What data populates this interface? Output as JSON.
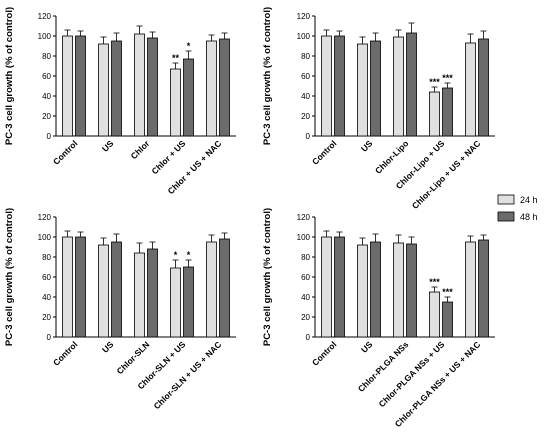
{
  "legend": {
    "position": "right",
    "entries": [
      {
        "label": "24 h",
        "color": "#e0e0e0"
      },
      {
        "label": "48 h",
        "color": "#6b6b6b"
      }
    ]
  },
  "chart_data": [
    {
      "type": "bar",
      "ylabel": "PC-3 cell growth (% of control)",
      "ylim": [
        0,
        120
      ],
      "yticks": [
        0,
        20,
        40,
        60,
        80,
        100,
        120
      ],
      "categories": [
        "Control",
        "US",
        "Chlor",
        "Chlor + US",
        "Chlor + US + NAC"
      ],
      "series": [
        {
          "name": "24 h",
          "values": [
            100,
            92,
            102,
            67,
            95
          ],
          "errors": [
            6,
            7,
            8,
            6,
            6
          ],
          "sig": [
            "",
            "",
            "",
            "**",
            ""
          ]
        },
        {
          "name": "48 h",
          "values": [
            100,
            95,
            98,
            77,
            97
          ],
          "errors": [
            5,
            8,
            6,
            8,
            6
          ],
          "sig": [
            "",
            "",
            "",
            "*",
            ""
          ]
        }
      ]
    },
    {
      "type": "bar",
      "ylabel": "PC-3 cell growth (% of control)",
      "ylim": [
        0,
        120
      ],
      "yticks": [
        0,
        20,
        40,
        60,
        80,
        100,
        120
      ],
      "categories": [
        "Control",
        "US",
        "Chlor-Lipo",
        "Chlor-Lipo + US",
        "Chlor-Lipo + US + NAC"
      ],
      "series": [
        {
          "name": "24 h",
          "values": [
            100,
            92,
            99,
            44,
            93
          ],
          "errors": [
            6,
            7,
            7,
            5,
            9
          ],
          "sig": [
            "",
            "",
            "",
            "***",
            ""
          ]
        },
        {
          "name": "48 h",
          "values": [
            100,
            95,
            103,
            48,
            97
          ],
          "errors": [
            5,
            8,
            10,
            5,
            8
          ],
          "sig": [
            "",
            "",
            "",
            "***",
            ""
          ]
        }
      ]
    },
    {
      "type": "bar",
      "ylabel": "PC-3 cell growth (% of control)",
      "ylim": [
        0,
        120
      ],
      "yticks": [
        0,
        20,
        40,
        60,
        80,
        100,
        120
      ],
      "categories": [
        "Control",
        "US",
        "Chlor-SLN",
        "Chlor-SLN + US",
        "Chlor-SLN + US + NAC"
      ],
      "series": [
        {
          "name": "24 h",
          "values": [
            100,
            92,
            84,
            69,
            95
          ],
          "errors": [
            6,
            7,
            10,
            8,
            7
          ],
          "sig": [
            "",
            "",
            "",
            "*",
            ""
          ]
        },
        {
          "name": "48 h",
          "values": [
            100,
            95,
            88,
            70,
            98
          ],
          "errors": [
            5,
            8,
            7,
            7,
            6
          ],
          "sig": [
            "",
            "",
            "",
            "*",
            ""
          ]
        }
      ]
    },
    {
      "type": "bar",
      "ylabel": "PC-3 cell growth  (% of control)",
      "ylim": [
        0,
        120
      ],
      "yticks": [
        0,
        20,
        40,
        60,
        80,
        100,
        120
      ],
      "categories": [
        "Control",
        "US",
        "Chlor-PLGA NSs",
        "Chlor-PLGA NSs + US",
        "Chlor-PLGA NSs + US + NAC"
      ],
      "series": [
        {
          "name": "24 h",
          "values": [
            100,
            92,
            94,
            45,
            95
          ],
          "errors": [
            6,
            7,
            8,
            5,
            6
          ],
          "sig": [
            "",
            "",
            "",
            "***",
            ""
          ]
        },
        {
          "name": "48 h",
          "values": [
            100,
            95,
            93,
            35,
            97
          ],
          "errors": [
            5,
            8,
            7,
            5,
            5
          ],
          "sig": [
            "",
            "",
            "",
            "***",
            ""
          ]
        }
      ]
    }
  ]
}
